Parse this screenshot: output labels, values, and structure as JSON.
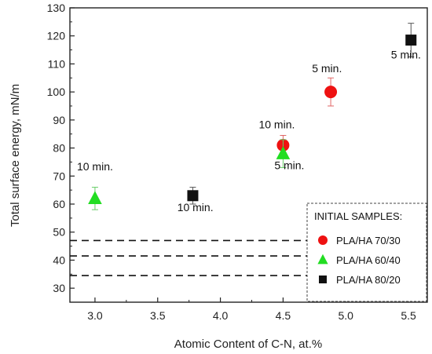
{
  "chart_data": {
    "type": "scatter",
    "xlabel": "Atomic Content of C-N, at.%",
    "ylabel": "Total surface energy, mN/m",
    "xlim": [
      2.8,
      5.65
    ],
    "ylim": [
      25,
      130
    ],
    "xticks": [
      3.0,
      3.5,
      4.0,
      4.5,
      5.0,
      5.5
    ],
    "xtick_labels": [
      "3.0",
      "3.5",
      "4.0",
      "4.5",
      "5.0",
      "5.5"
    ],
    "yticks": [
      30,
      40,
      50,
      60,
      70,
      80,
      90,
      100,
      110,
      120,
      130
    ],
    "ytick_labels": [
      "30",
      "40",
      "50",
      "60",
      "70",
      "80",
      "90",
      "100",
      "110",
      "120",
      "130"
    ],
    "series": [
      {
        "name": "PLA/HA 70/30",
        "marker": "circle",
        "color": "#ee1111",
        "points": [
          {
            "x": 4.5,
            "y": 81,
            "err": 3.5
          },
          {
            "x": 4.88,
            "y": 100,
            "err": 5
          }
        ]
      },
      {
        "name": "PLA/HA 60/40",
        "marker": "triangle",
        "color": "#22dd22",
        "points": [
          {
            "x": 3.0,
            "y": 62,
            "err": 4
          },
          {
            "x": 4.5,
            "y": 78,
            "err": 5
          }
        ]
      },
      {
        "name": "PLA/HA 80/20",
        "marker": "square",
        "color": "#111111",
        "points": [
          {
            "x": 3.78,
            "y": 63,
            "err": 3
          },
          {
            "x": 5.52,
            "y": 118.5,
            "err": 6
          }
        ]
      }
    ],
    "reference_lines": [
      {
        "series": "PLA/HA 80/20",
        "y": 47
      },
      {
        "series": "PLA/HA 60/40",
        "y": 41.5
      },
      {
        "series": "PLA/HA 70/30",
        "y": 34.5
      }
    ],
    "annotations": [
      {
        "text": "10 min.",
        "x": 3.0,
        "y": 72
      },
      {
        "text": "10 min.",
        "x": 3.8,
        "y": 57.5
      },
      {
        "text": "10 min.",
        "x": 4.45,
        "y": 87
      },
      {
        "text": "5 min.",
        "x": 4.55,
        "y": 72.5
      },
      {
        "text": "5 min.",
        "x": 4.85,
        "y": 107
      },
      {
        "text": "5 min.",
        "x": 5.48,
        "y": 112
      }
    ],
    "legend": {
      "title": "INITIAL SAMPLES:",
      "position": "bottom-right"
    }
  }
}
